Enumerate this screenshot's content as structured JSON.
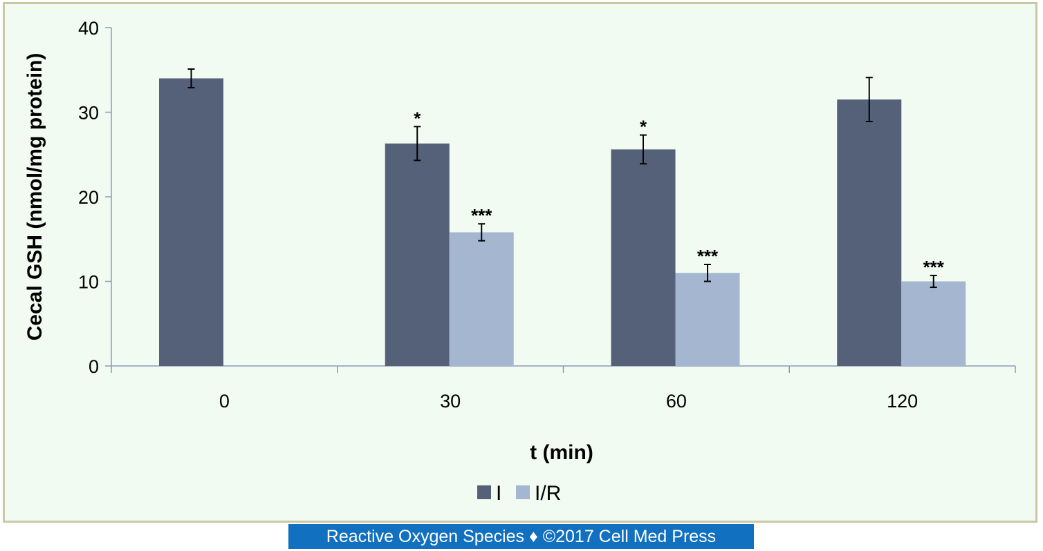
{
  "chart_data": {
    "type": "bar",
    "title": "",
    "xlabel": "t (min)",
    "ylabel": "Cecal GSH (nmol/mg protein)",
    "ylim": [
      0,
      40
    ],
    "yticks": [
      "0",
      "10",
      "20",
      "30",
      "40"
    ],
    "categories": [
      "0",
      "30",
      "60",
      "120"
    ],
    "series": [
      {
        "name": "I",
        "color": "#546178",
        "values": [
          34,
          26.3,
          25.6,
          31.5
        ],
        "errors": [
          1.1,
          2.0,
          1.7,
          2.6
        ],
        "annotations": [
          "",
          "*",
          "*",
          ""
        ]
      },
      {
        "name": "I/R",
        "color": "#a5b6d1",
        "values": [
          null,
          15.8,
          11,
          10
        ],
        "errors": [
          null,
          1.0,
          1.0,
          0.7
        ],
        "annotations": [
          "",
          "***",
          "***",
          "***"
        ]
      }
    ],
    "legend": "bottom",
    "grid": false
  },
  "footer": {
    "text": "Reactive Oxygen Species ♦ ©2017 Cell Med Press"
  }
}
